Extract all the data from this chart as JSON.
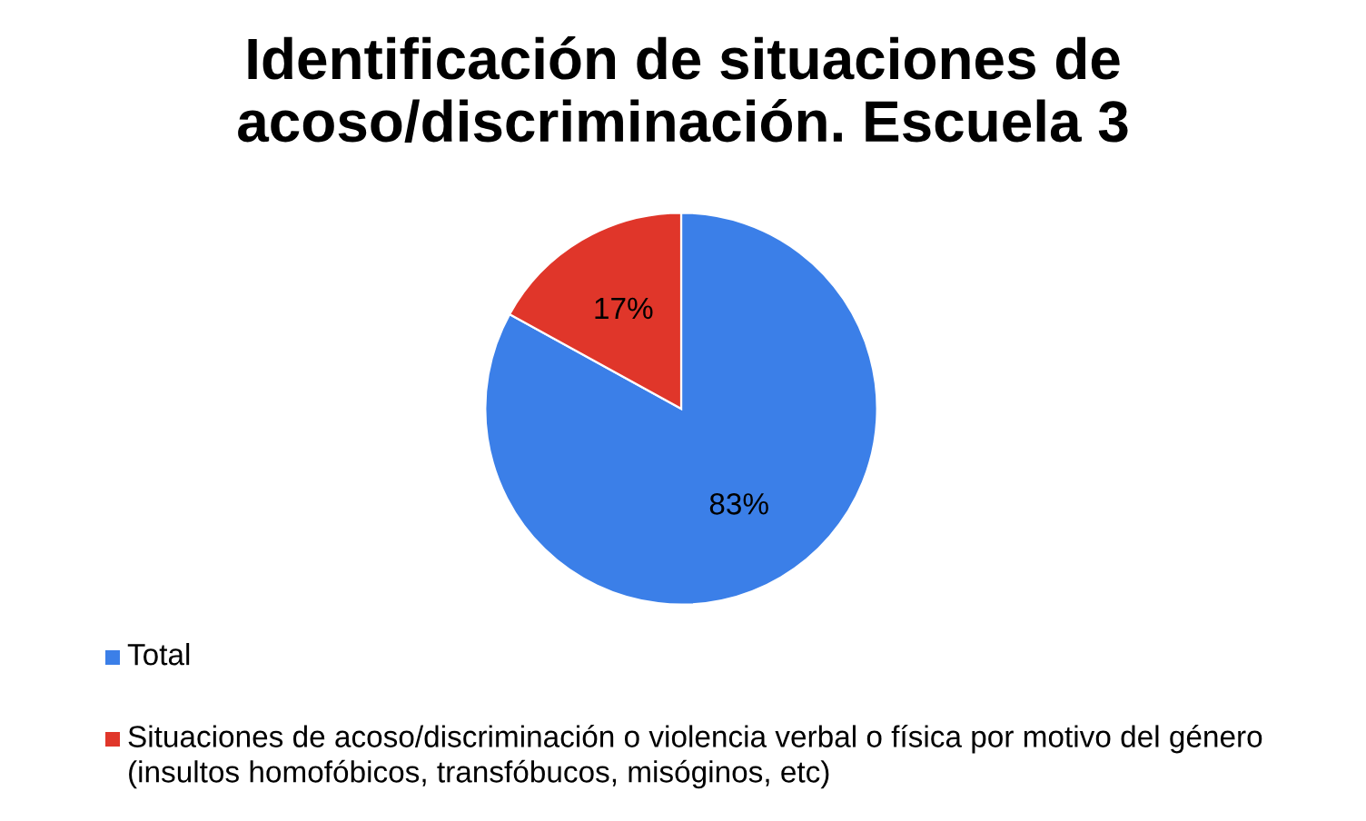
{
  "chart_data": {
    "type": "pie",
    "title": "Identificación de situaciones de acoso/discriminación. Escuela 3",
    "categories": [
      "Total",
      "Situaciones de acoso/discriminación o violencia verbal o física por motivo del género (insultos homofóbicos, transfóbucos, misóginos, etc)"
    ],
    "values": [
      83,
      17
    ],
    "colors": [
      "#3b7fe8",
      "#e0362a"
    ],
    "value_labels": [
      "83%",
      "17%"
    ],
    "legend": "bottom"
  }
}
